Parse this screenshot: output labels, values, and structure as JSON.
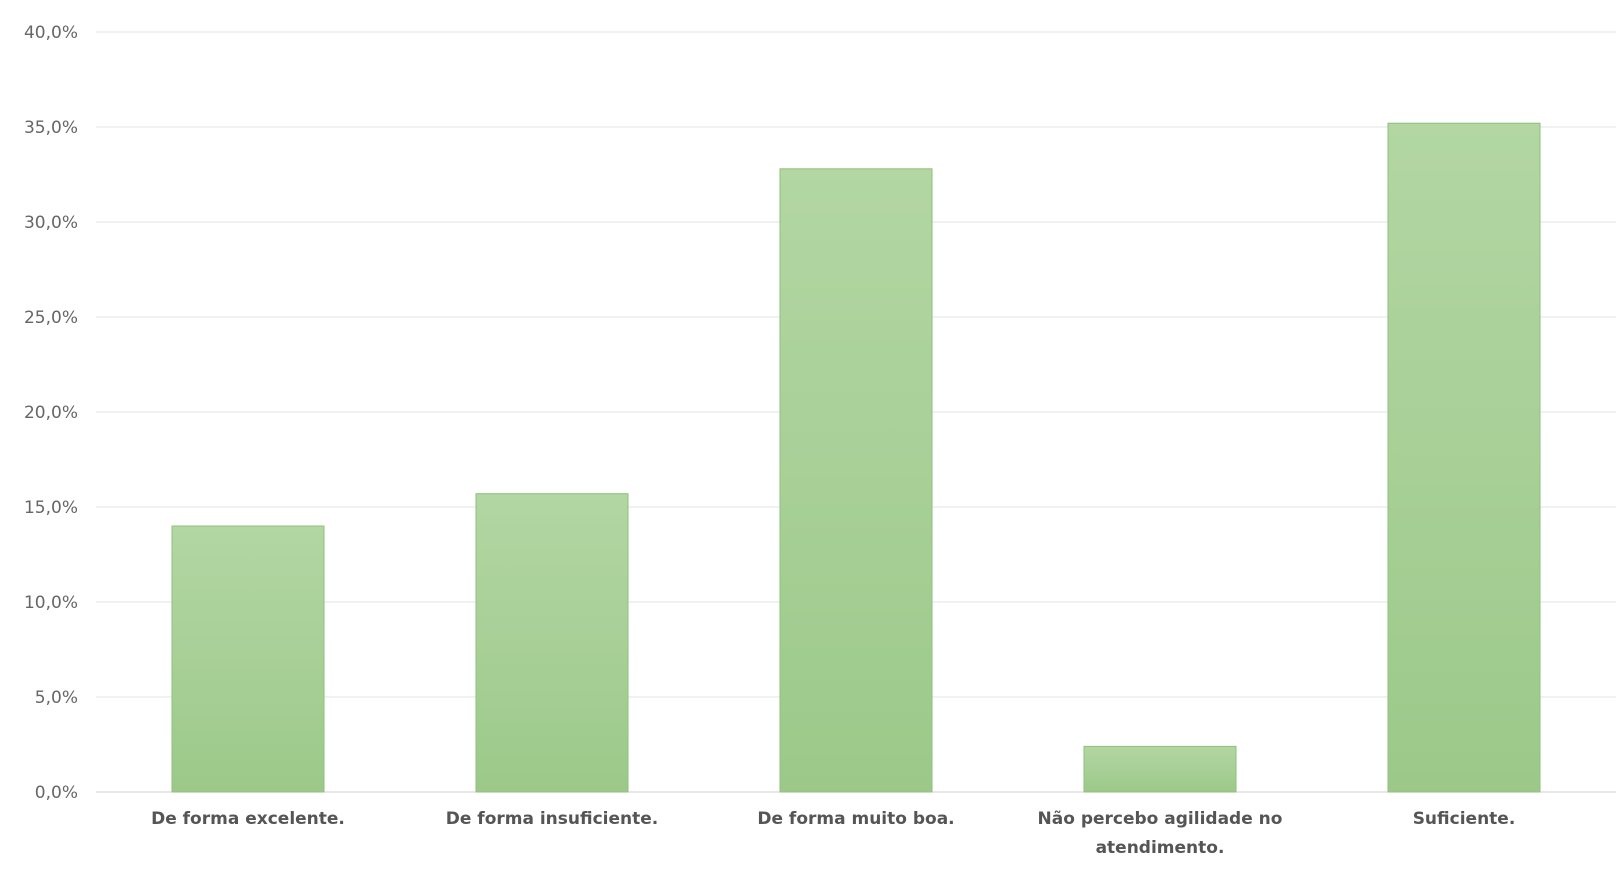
{
  "chart_data": {
    "type": "bar",
    "title": "",
    "xlabel": "",
    "ylabel": "",
    "categories": [
      [
        "De forma excelente."
      ],
      [
        "De forma insuficiente."
      ],
      [
        "De forma muito boa."
      ],
      [
        "Não percebo agilidade no",
        "atendimento."
      ],
      [
        "Suficiente."
      ]
    ],
    "values": [
      14.0,
      15.7,
      32.8,
      2.4,
      35.2
    ],
    "ylim": [
      0,
      40
    ],
    "yticks": [
      "0,0%",
      "5,0%",
      "10,0%",
      "15,0%",
      "20,0%",
      "25,0%",
      "30,0%",
      "35,0%",
      "40,0%"
    ],
    "ytick_values": [
      0,
      5,
      10,
      15,
      20,
      25,
      30,
      35,
      40
    ],
    "grid": true,
    "legend": "none",
    "bar_color_top": "#b3d6a3",
    "bar_color_bottom": "#9cc98a",
    "bar_edge_color": "#8cc27a"
  }
}
